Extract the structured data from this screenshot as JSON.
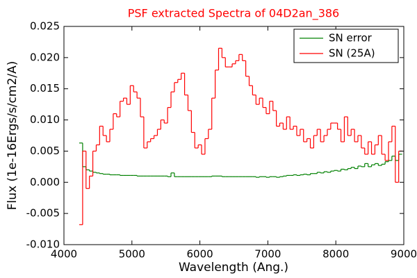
{
  "chart_data": {
    "type": "step",
    "title": "PSF extracted Spectra of 04D2an_386",
    "xlabel": "Wavelength (Ang.)",
    "ylabel": "Flux (1e-16Ergs/s/cm2/A)",
    "xlim": [
      4000,
      9000
    ],
    "xticks": [
      4000,
      5000,
      6000,
      7000,
      8000,
      9000
    ],
    "ylim": [
      -0.01,
      0.025
    ],
    "yticks": [
      {
        "value": -0.01,
        "label": "-0.010"
      },
      -0.005,
      {
        "value": 0,
        "label": "0.000"
      },
      0.005,
      {
        "value": 0.01,
        "label": "0.010"
      },
      0.015,
      {
        "value": 0.02,
        "label": "0.020"
      },
      0.025
    ],
    "legend": "upper right",
    "x": [
      4250,
      4300,
      4350,
      4400,
      4450,
      4500,
      4550,
      4600,
      4650,
      4700,
      4750,
      4800,
      4850,
      4900,
      4950,
      5000,
      5050,
      5100,
      5150,
      5200,
      5250,
      5300,
      5350,
      5400,
      5450,
      5500,
      5550,
      5600,
      5650,
      5700,
      5750,
      5800,
      5850,
      5900,
      5950,
      6000,
      6050,
      6100,
      6150,
      6200,
      6250,
      6300,
      6350,
      6400,
      6450,
      6500,
      6550,
      6600,
      6650,
      6700,
      6750,
      6800,
      6850,
      6900,
      6950,
      7000,
      7050,
      7100,
      7150,
      7200,
      7250,
      7300,
      7350,
      7400,
      7450,
      7500,
      7550,
      7600,
      7650,
      7700,
      7750,
      7800,
      7850,
      7900,
      7950,
      8000,
      8050,
      8100,
      8150,
      8200,
      8250,
      8300,
      8350,
      8400,
      8450,
      8500,
      8550,
      8600,
      8650,
      8700,
      8750,
      8800,
      8850,
      8900,
      8950
    ],
    "series": [
      {
        "name": "SN error",
        "color": "#008000",
        "values": [
          0.0063,
          0.0025,
          0.002,
          0.0018,
          0.0016,
          0.0015,
          0.0014,
          0.0013,
          0.0013,
          0.0012,
          0.0012,
          0.0012,
          0.0011,
          0.0011,
          0.0011,
          0.0011,
          0.0011,
          0.001,
          0.001,
          0.001,
          0.001,
          0.001,
          0.001,
          0.001,
          0.001,
          0.001,
          0.0009,
          0.0015,
          0.0009,
          0.0009,
          0.0009,
          0.0009,
          0.0009,
          0.0009,
          0.0009,
          0.0009,
          0.0009,
          0.0009,
          0.0009,
          0.001,
          0.001,
          0.001,
          0.0009,
          0.0009,
          0.0009,
          0.0009,
          0.0009,
          0.0009,
          0.0009,
          0.0009,
          0.0009,
          0.0009,
          0.0008,
          0.0009,
          0.0009,
          0.0008,
          0.0009,
          0.0009,
          0.0008,
          0.0009,
          0.001,
          0.0011,
          0.0011,
          0.0012,
          0.0011,
          0.0012,
          0.0013,
          0.0012,
          0.0014,
          0.0014,
          0.0016,
          0.0015,
          0.0017,
          0.0016,
          0.0018,
          0.0019,
          0.0018,
          0.0021,
          0.002,
          0.0022,
          0.0024,
          0.0022,
          0.0026,
          0.0025,
          0.003,
          0.0025,
          0.0028,
          0.003,
          0.0027,
          0.0029,
          0.0033,
          0.0035,
          0.0042,
          0.0035,
          0.0045
        ]
      },
      {
        "name": "SN (25A)",
        "color": "#ff0000",
        "values": [
          -0.0068,
          0.005,
          -0.001,
          0.001,
          0.005,
          0.006,
          0.009,
          0.0075,
          0.0065,
          0.0085,
          0.011,
          0.0105,
          0.013,
          0.0135,
          0.0125,
          0.0155,
          0.0145,
          0.0135,
          0.0105,
          0.0055,
          0.0065,
          0.007,
          0.0075,
          0.0085,
          0.01,
          0.0095,
          0.012,
          0.0145,
          0.016,
          0.0165,
          0.0175,
          0.014,
          0.0115,
          0.008,
          0.0055,
          0.006,
          0.0045,
          0.007,
          0.0085,
          0.0135,
          0.018,
          0.0215,
          0.02,
          0.0185,
          0.0185,
          0.019,
          0.0195,
          0.0205,
          0.0195,
          0.017,
          0.0155,
          0.014,
          0.0125,
          0.0135,
          0.012,
          0.011,
          0.013,
          0.0115,
          0.009,
          0.0095,
          0.0085,
          0.0105,
          0.0085,
          0.009,
          0.0075,
          0.0085,
          0.0065,
          0.007,
          0.0055,
          0.0075,
          0.0085,
          0.0065,
          0.0075,
          0.0085,
          0.0095,
          0.0095,
          0.0085,
          0.0065,
          0.0105,
          0.0075,
          0.0085,
          0.0065,
          0.0075,
          0.0055,
          0.0045,
          0.0065,
          0.0045,
          0.006,
          0.0075,
          0.0045,
          0.0035,
          0.0065,
          0.009,
          0.0,
          0.005
        ]
      }
    ]
  }
}
